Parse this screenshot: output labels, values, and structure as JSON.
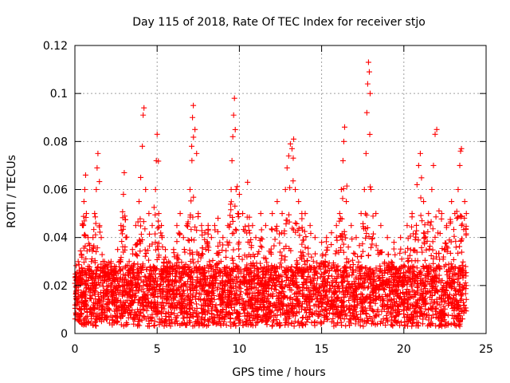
{
  "chart_data": {
    "type": "scatter",
    "title": "Day 115 of 2018, Rate Of TEC Index for receiver stjo",
    "xlabel": "GPS time / hours",
    "ylabel": "ROTI / TECUs",
    "xlim": [
      0,
      25
    ],
    "ylim": [
      0,
      0.12
    ],
    "xticks": [
      0,
      5,
      10,
      15,
      20,
      25
    ],
    "xtick_labels": [
      "0",
      "5",
      "10",
      "15",
      "20",
      "25"
    ],
    "yticks": [
      0,
      0.02,
      0.04,
      0.06,
      0.08,
      0.1,
      0.12
    ],
    "ytick_labels": [
      "0",
      "0.02",
      "0.04",
      "0.06",
      "0.08",
      "0.1",
      "0.12"
    ],
    "grid": true,
    "marker": "+",
    "color": "#ff0000",
    "series": [
      {
        "name": "ROTI",
        "points": [
          [
            0.1,
            0.02
          ],
          [
            0.2,
            0.03
          ],
          [
            0.3,
            0.025
          ],
          [
            0.4,
            0.033
          ],
          [
            0.5,
            0.045
          ],
          [
            0.55,
            0.055
          ],
          [
            0.6,
            0.06
          ],
          [
            0.65,
            0.066
          ],
          [
            0.7,
            0.05
          ],
          [
            0.8,
            0.04
          ],
          [
            0.9,
            0.035
          ],
          [
            1.0,
            0.03
          ],
          [
            1.1,
            0.04
          ],
          [
            1.2,
            0.05
          ],
          [
            1.3,
            0.06
          ],
          [
            1.35,
            0.069
          ],
          [
            1.4,
            0.075
          ],
          [
            1.5,
            0.045
          ],
          [
            1.6,
            0.04
          ],
          [
            1.8,
            0.03
          ],
          [
            2.0,
            0.025
          ],
          [
            2.2,
            0.03
          ],
          [
            2.4,
            0.028
          ],
          [
            2.6,
            0.035
          ],
          [
            2.8,
            0.045
          ],
          [
            2.95,
            0.058
          ],
          [
            3.0,
            0.067
          ],
          [
            3.1,
            0.04
          ],
          [
            3.3,
            0.03
          ],
          [
            3.5,
            0.035
          ],
          [
            3.7,
            0.045
          ],
          [
            3.9,
            0.055
          ],
          [
            4.0,
            0.065
          ],
          [
            4.1,
            0.078
          ],
          [
            4.15,
            0.091
          ],
          [
            4.2,
            0.094
          ],
          [
            4.3,
            0.06
          ],
          [
            4.5,
            0.05
          ],
          [
            4.7,
            0.045
          ],
          [
            4.9,
            0.06
          ],
          [
            4.95,
            0.072
          ],
          [
            5.0,
            0.083
          ],
          [
            5.1,
            0.05
          ],
          [
            5.3,
            0.04
          ],
          [
            5.5,
            0.035
          ],
          [
            5.7,
            0.03
          ],
          [
            6.0,
            0.035
          ],
          [
            6.2,
            0.045
          ],
          [
            6.4,
            0.05
          ],
          [
            6.6,
            0.04
          ],
          [
            6.8,
            0.045
          ],
          [
            7.0,
            0.06
          ],
          [
            7.1,
            0.078
          ],
          [
            7.15,
            0.09
          ],
          [
            7.2,
            0.095
          ],
          [
            7.3,
            0.085
          ],
          [
            7.4,
            0.075
          ],
          [
            7.5,
            0.05
          ],
          [
            7.7,
            0.045
          ],
          [
            7.9,
            0.042
          ],
          [
            8.1,
            0.045
          ],
          [
            8.3,
            0.04
          ],
          [
            8.5,
            0.045
          ],
          [
            8.7,
            0.048
          ],
          [
            9.0,
            0.04
          ],
          [
            9.3,
            0.045
          ],
          [
            9.5,
            0.06
          ],
          [
            9.55,
            0.072
          ],
          [
            9.6,
            0.082
          ],
          [
            9.65,
            0.091
          ],
          [
            9.7,
            0.098
          ],
          [
            9.8,
            0.06
          ],
          [
            9.9,
            0.05
          ],
          [
            10.0,
            0.058
          ],
          [
            10.2,
            0.05
          ],
          [
            10.5,
            0.063
          ],
          [
            10.8,
            0.045
          ],
          [
            11.0,
            0.04
          ],
          [
            11.3,
            0.05
          ],
          [
            11.6,
            0.045
          ],
          [
            12.0,
            0.05
          ],
          [
            12.3,
            0.055
          ],
          [
            12.6,
            0.05
          ],
          [
            12.8,
            0.06
          ],
          [
            12.9,
            0.069
          ],
          [
            13.0,
            0.074
          ],
          [
            13.1,
            0.079
          ],
          [
            13.2,
            0.077
          ],
          [
            13.3,
            0.081
          ],
          [
            13.4,
            0.06
          ],
          [
            13.6,
            0.055
          ],
          [
            13.8,
            0.05
          ],
          [
            14.0,
            0.05
          ],
          [
            14.3,
            0.045
          ],
          [
            14.6,
            0.04
          ],
          [
            15.0,
            0.038
          ],
          [
            15.3,
            0.04
          ],
          [
            15.6,
            0.042
          ],
          [
            15.9,
            0.045
          ],
          [
            16.1,
            0.05
          ],
          [
            16.2,
            0.06
          ],
          [
            16.3,
            0.072
          ],
          [
            16.35,
            0.08
          ],
          [
            16.4,
            0.086
          ],
          [
            16.5,
            0.055
          ],
          [
            16.8,
            0.045
          ],
          [
            17.1,
            0.04
          ],
          [
            17.4,
            0.05
          ],
          [
            17.6,
            0.06
          ],
          [
            17.7,
            0.075
          ],
          [
            17.75,
            0.092
          ],
          [
            17.8,
            0.104
          ],
          [
            17.85,
            0.113
          ],
          [
            17.9,
            0.109
          ],
          [
            17.95,
            0.1
          ],
          [
            18.0,
            0.06
          ],
          [
            18.3,
            0.05
          ],
          [
            18.6,
            0.045
          ],
          [
            19.0,
            0.04
          ],
          [
            19.4,
            0.038
          ],
          [
            19.8,
            0.04
          ],
          [
            20.2,
            0.045
          ],
          [
            20.5,
            0.05
          ],
          [
            20.8,
            0.062
          ],
          [
            20.9,
            0.07
          ],
          [
            21.0,
            0.075
          ],
          [
            21.2,
            0.055
          ],
          [
            21.5,
            0.05
          ],
          [
            21.7,
            0.06
          ],
          [
            21.8,
            0.07
          ],
          [
            21.9,
            0.083
          ],
          [
            22.0,
            0.085
          ],
          [
            22.3,
            0.05
          ],
          [
            22.6,
            0.045
          ],
          [
            22.9,
            0.055
          ],
          [
            23.1,
            0.05
          ],
          [
            23.3,
            0.06
          ],
          [
            23.4,
            0.07
          ],
          [
            23.45,
            0.076
          ],
          [
            23.5,
            0.077
          ],
          [
            23.7,
            0.055
          ],
          [
            23.8,
            0.05
          ]
        ]
      }
    ],
    "density_note_points": 4000
  }
}
